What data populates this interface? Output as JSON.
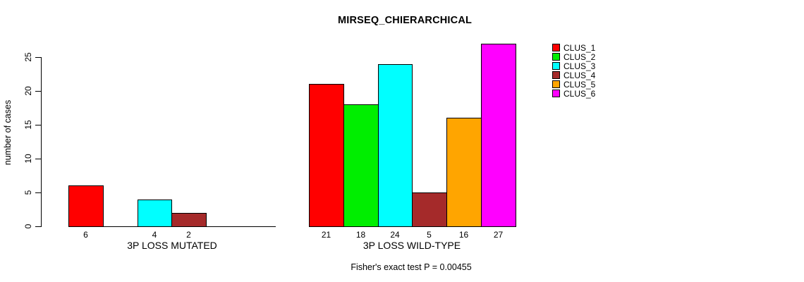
{
  "chart_data": {
    "type": "bar",
    "title": "MIRSEQ_CHIERARCHICAL",
    "ylabel": "number of cases",
    "xlabel": "",
    "ylim": [
      0,
      27
    ],
    "yticks": [
      0,
      5,
      10,
      15,
      20,
      25
    ],
    "grid": false,
    "legend_position": "right",
    "legend": [
      {
        "label": "CLUS_1",
        "color": "#FF0000"
      },
      {
        "label": "CLUS_2",
        "color": "#00EE00"
      },
      {
        "label": "CLUS_3",
        "color": "#00FFFF"
      },
      {
        "label": "CLUS_4",
        "color": "#A52A2A"
      },
      {
        "label": "CLUS_5",
        "color": "#FFA500"
      },
      {
        "label": "CLUS_6",
        "color": "#FF00FF"
      }
    ],
    "groups": [
      {
        "label": "3P LOSS MUTATED",
        "values": [
          6,
          0,
          4,
          2,
          0,
          0
        ],
        "bar_labels": [
          "6",
          "",
          "4",
          "2",
          "",
          ""
        ]
      },
      {
        "label": "3P LOSS WILD-TYPE",
        "values": [
          21,
          18,
          24,
          5,
          16,
          27
        ],
        "bar_labels": [
          "21",
          "18",
          "24",
          "5",
          "16",
          "27"
        ]
      }
    ],
    "annotation": "Fisher's exact test P = 0.00455"
  },
  "colors": {
    "background": "#FFFFFF",
    "axis": "#000000",
    "text": "#000000"
  }
}
